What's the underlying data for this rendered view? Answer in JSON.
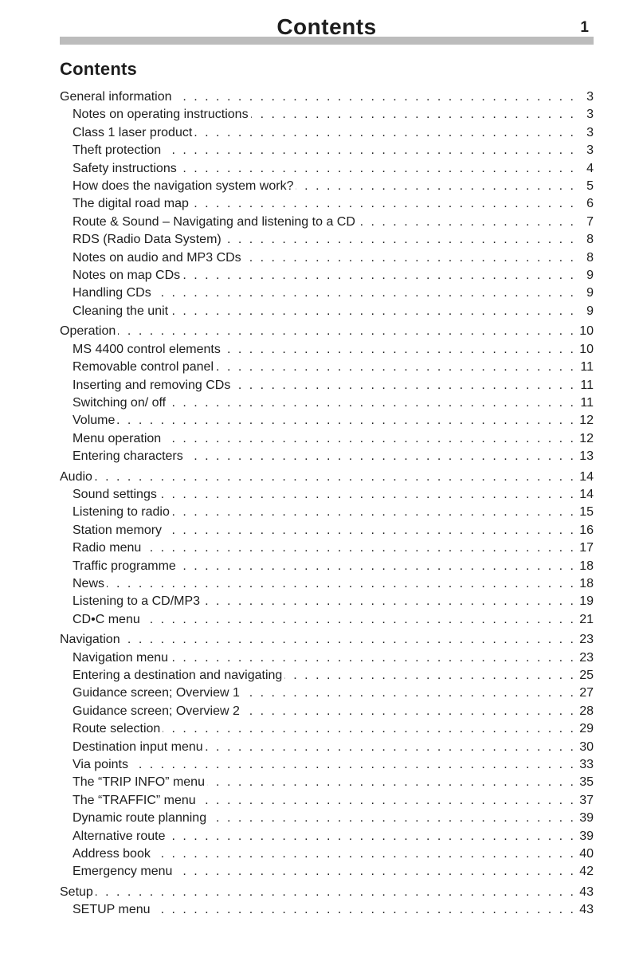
{
  "header": {
    "title": "Contents",
    "page_number": "1"
  },
  "toc": {
    "heading": "Contents",
    "sections": [
      {
        "title": "General information",
        "page": "3",
        "items": [
          {
            "label": "Notes on operating instructions",
            "page": "3"
          },
          {
            "label": "Class 1 laser product",
            "page": "3"
          },
          {
            "label": "Theft protection",
            "page": "3"
          },
          {
            "label": "Safety instructions",
            "page": "4"
          },
          {
            "label": "How does the navigation system work?",
            "page": "5"
          },
          {
            "label": "The digital road map",
            "page": "6"
          },
          {
            "label": "Route & Sound – Navigating and listening to a CD",
            "page": "7"
          },
          {
            "label": "RDS (Radio Data System)",
            "page": "8"
          },
          {
            "label": "Notes on audio and MP3 CDs",
            "page": "8"
          },
          {
            "label": "Notes on map CDs",
            "page": "9"
          },
          {
            "label": "Handling CDs",
            "page": "9"
          },
          {
            "label": "Cleaning the unit",
            "page": "9"
          }
        ]
      },
      {
        "title": "Operation",
        "page": "10",
        "items": [
          {
            "label": "MS 4400 control elements",
            "page": "10"
          },
          {
            "label": "Removable control panel",
            "page": "11"
          },
          {
            "label": "Inserting and removing CDs",
            "page": "11"
          },
          {
            "label": "Switching on/ off",
            "page": "11"
          },
          {
            "label": "Volume",
            "page": "12"
          },
          {
            "label": "Menu operation",
            "page": "12"
          },
          {
            "label": "Entering characters",
            "page": "13"
          }
        ]
      },
      {
        "title": "Audio",
        "page": "14",
        "items": [
          {
            "label": "Sound settings",
            "page": "14"
          },
          {
            "label": "Listening to radio",
            "page": "15"
          },
          {
            "label": "Station memory",
            "page": "16"
          },
          {
            "label": "Radio menu",
            "page": "17"
          },
          {
            "label": "Traffic programme",
            "page": "18"
          },
          {
            "label": "News",
            "page": "18"
          },
          {
            "label": "Listening to a CD/MP3",
            "page": "19"
          },
          {
            "label": "CD•C menu",
            "page": "21"
          }
        ]
      },
      {
        "title": "Navigation",
        "page": "23",
        "items": [
          {
            "label": "Navigation menu",
            "page": "23"
          },
          {
            "label": "Entering a destination and navigating",
            "page": "25"
          },
          {
            "label": "Guidance screen; Overview 1",
            "page": "27"
          },
          {
            "label": "Guidance screen; Overview 2",
            "page": "28"
          },
          {
            "label": "Route selection",
            "page": "29"
          },
          {
            "label": "Destination input menu",
            "page": "30"
          },
          {
            "label": "Via points",
            "page": "33"
          },
          {
            "label": "The “TRIP INFO” menu",
            "page": "35"
          },
          {
            "label": "The “TRAFFIC” menu",
            "page": "37"
          },
          {
            "label": "Dynamic route planning",
            "page": "39"
          },
          {
            "label": "Alternative route",
            "page": "39"
          },
          {
            "label": "Address book",
            "page": "40"
          },
          {
            "label": "Emergency menu",
            "page": "42"
          }
        ]
      },
      {
        "title": "Setup",
        "page": "43",
        "items": [
          {
            "label": "SETUP menu",
            "page": "43"
          }
        ]
      }
    ]
  },
  "colors": {
    "rule_bar": "#bcbcbc",
    "text": "#1d1d1d"
  }
}
